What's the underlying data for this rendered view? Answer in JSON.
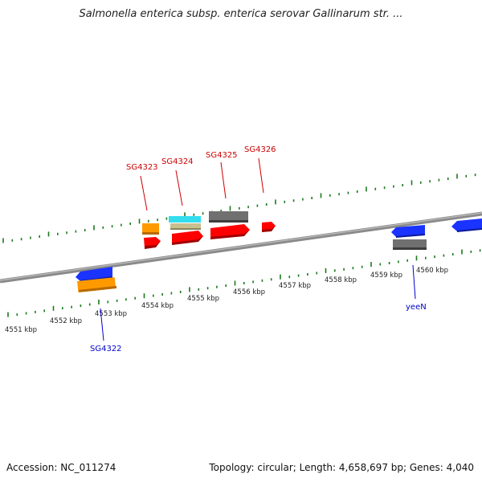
{
  "title": "Salmonella enterica subsp. enterica serovar Gallinarum str. ...",
  "footer": {
    "accession": "Accession: NC_011274",
    "summary": "Topology: circular; Length: 4,658,697 bp; Genes: 4,040"
  },
  "colors": {
    "backbone": "#8a8a8a",
    "ticks": "#1a7a1a",
    "forward_label": "#cc0000",
    "reverse_label": "#0000cc",
    "orange": "#ff9900",
    "red": "#ff0000",
    "cyan": "#33ddee",
    "khaki": "#c8c090",
    "gray": "#707070",
    "blue": "#1a33ff"
  },
  "scale": {
    "labels": [
      "4551 kbp",
      "4552 kbp",
      "4553 kbp",
      "4554 kbp",
      "4555 kbp",
      "4556 kbp",
      "4557 kbp",
      "4558 kbp",
      "4559 kbp",
      "4560 kbp"
    ]
  },
  "gene_labels": {
    "forward": [
      "SG4323",
      "SG4324",
      "SG4325",
      "SG4326"
    ],
    "reverse": [
      "SG4322",
      "yeeN"
    ]
  }
}
